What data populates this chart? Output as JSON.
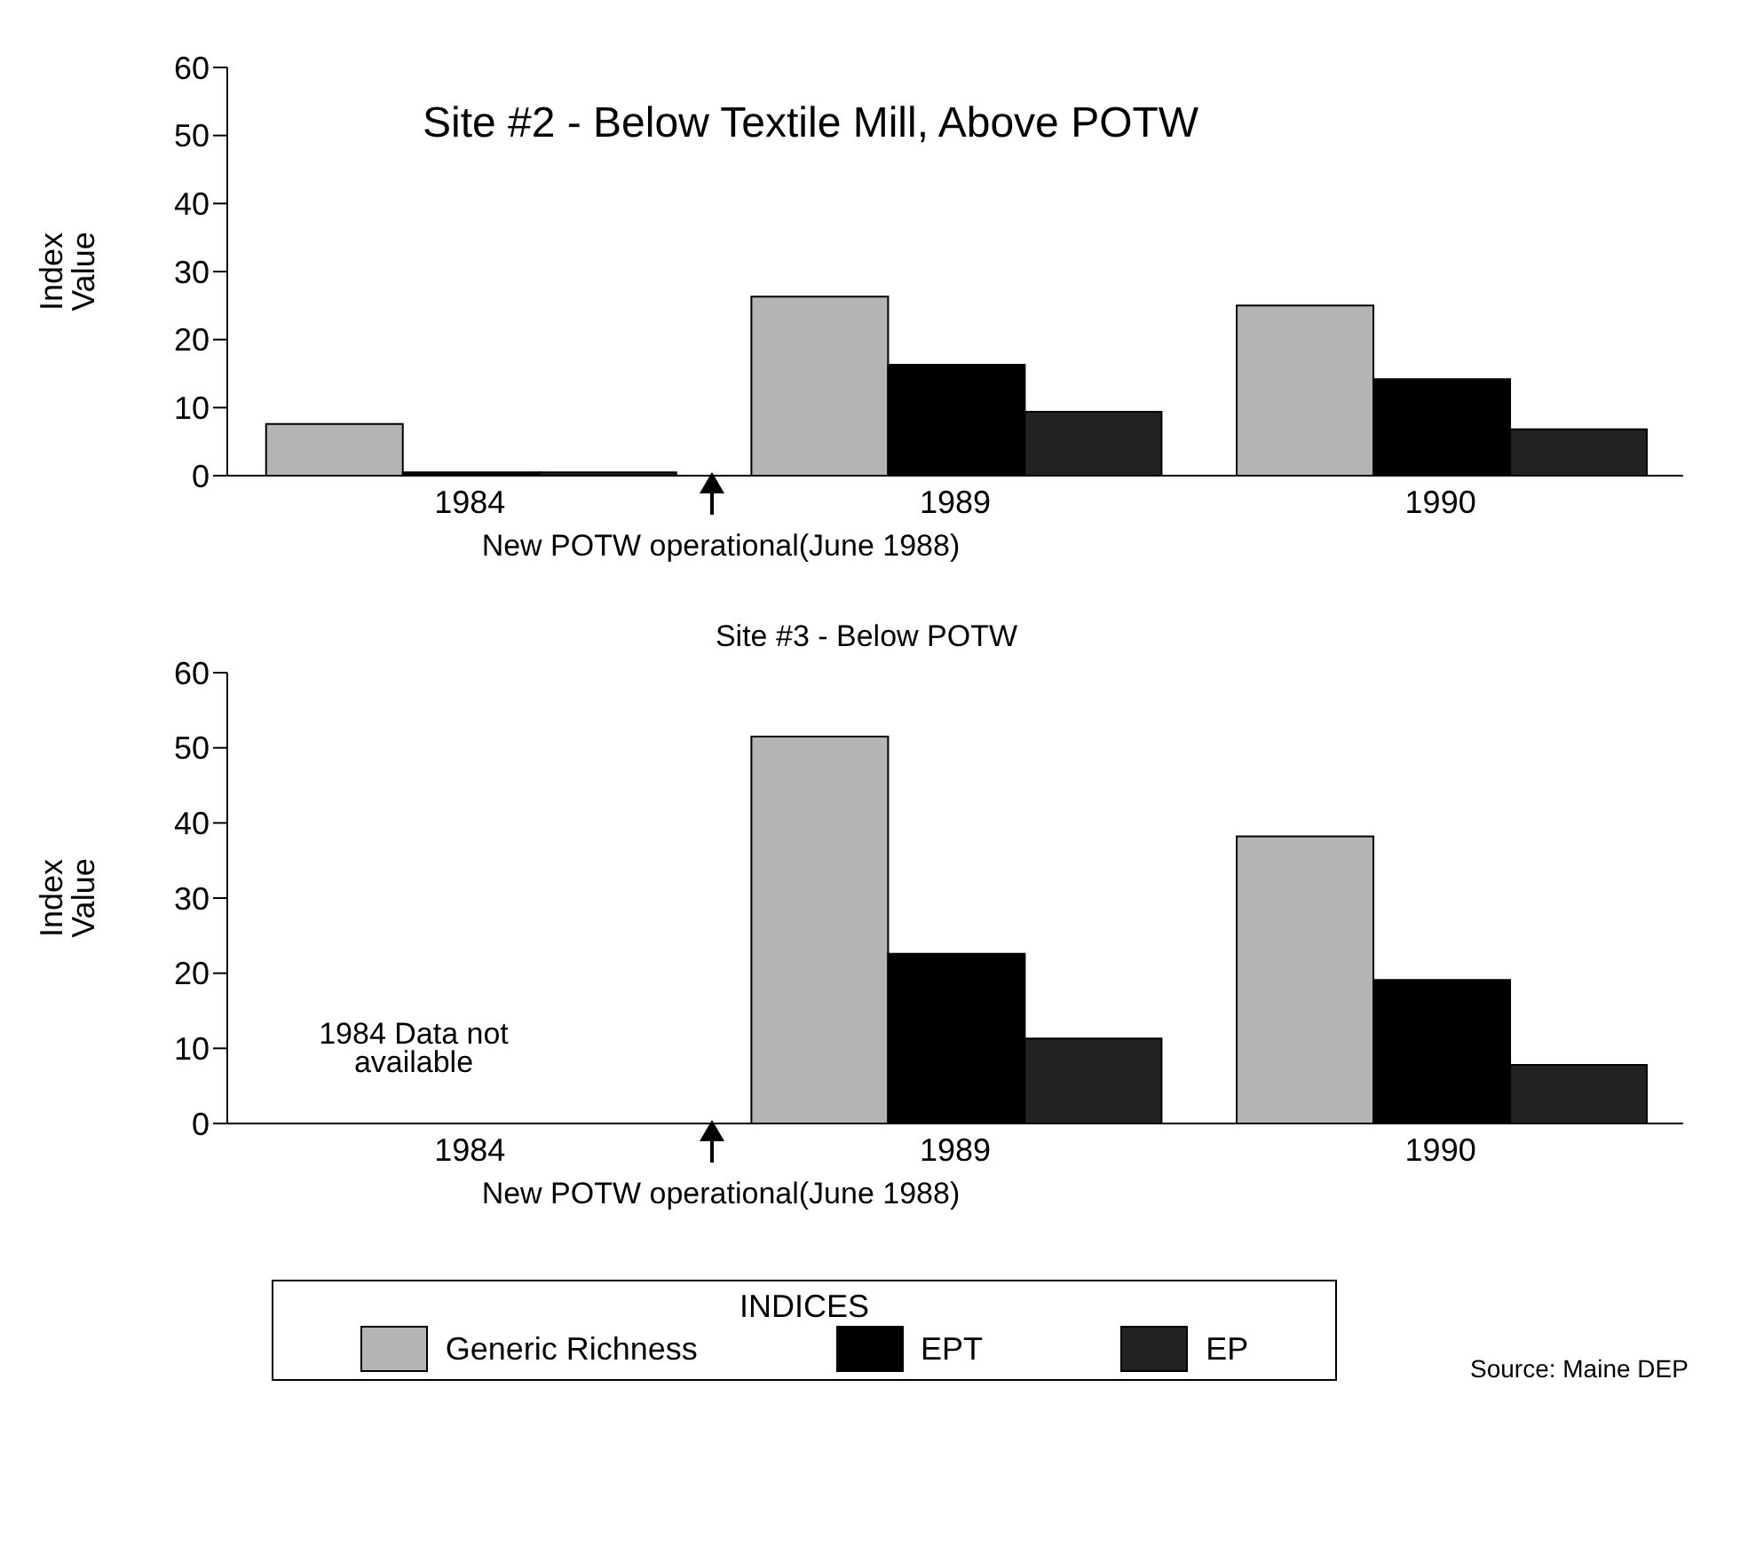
{
  "chart_data": [
    {
      "type": "bar",
      "title": "Site #2 - Below Textile Mill, Above POTW",
      "ylabel": "Index Value",
      "categories": [
        "1984",
        "1989",
        "1990"
      ],
      "series": [
        {
          "color": "#b4b4b4",
          "values": [
            7.6,
            26.3,
            25
          ]
        },
        {
          "color": "#000000",
          "values": [
            0.5,
            16.3,
            14.2
          ]
        },
        {
          "color": "#222222",
          "values": [
            0.5,
            9.4,
            6.8
          ]
        }
      ],
      "ylim": [
        0,
        60
      ],
      "yticks": [
        0,
        10,
        20,
        30,
        40,
        50,
        60
      ],
      "grid": false,
      "legend": false,
      "annotations": [
        "New POTW operational(June 1988)"
      ]
    },
    {
      "type": "bar",
      "title": "Site #3 - Below POTW",
      "ylabel": "Index Value",
      "categories": [
        "1984",
        "1989",
        "1990"
      ],
      "series": [
        {
          "name": "Generic Richness",
          "color": "#b4b4b4",
          "values": [
            null,
            51.5,
            38.2
          ]
        },
        {
          "name": "EPT",
          "color": "#000000",
          "values": [
            null,
            22.6,
            19.1
          ]
        },
        {
          "name": "EP",
          "color": "#222222",
          "values": [
            null,
            11.3,
            7.8
          ]
        }
      ],
      "ylim": [
        0,
        60
      ],
      "yticks": [
        0,
        10,
        20,
        30,
        40,
        50,
        60
      ],
      "grid": false,
      "legend": "bottom",
      "legend_title": "INDICES",
      "annotations": [
        "1984 Data not available",
        "New POTW operational(June 1988)",
        "Source:  Maine DEP"
      ]
    }
  ]
}
